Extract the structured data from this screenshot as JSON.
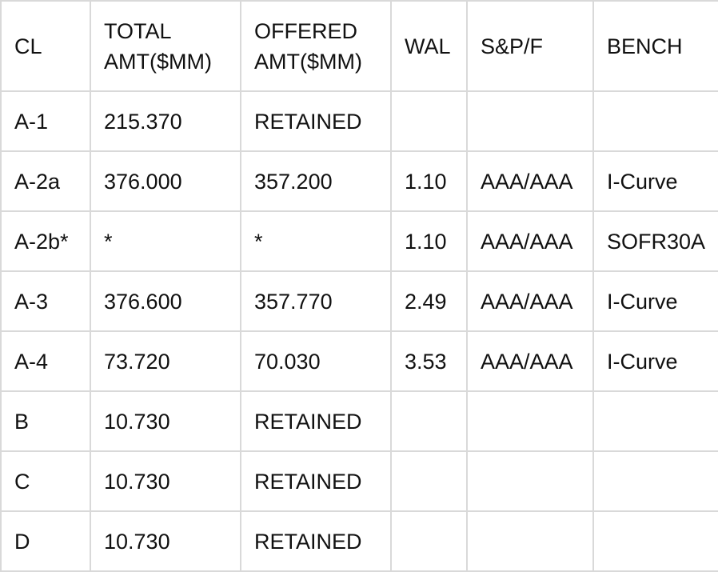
{
  "table": {
    "headers": [
      "CL",
      "TOTAL AMT($MM)",
      "OFFERED AMT($MM)",
      "WAL",
      "S&P/F",
      "BENCH"
    ],
    "header_lines": {
      "total_line1": "TOTAL",
      "total_line2": "AMT($MM)",
      "offered_line1": "OFFERED",
      "offered_line2": "AMT($MM)"
    },
    "rows": [
      [
        "A-1",
        "215.370",
        "RETAINED",
        "",
        "",
        ""
      ],
      [
        "A-2a",
        "376.000",
        "357.200",
        "1.10",
        "AAA/AAA",
        "I-Curve"
      ],
      [
        "A-2b*",
        "*",
        "*",
        "1.10",
        "AAA/AAA",
        "SOFR30A"
      ],
      [
        "A-3",
        "376.600",
        "357.770",
        "2.49",
        "AAA/AAA",
        "I-Curve"
      ],
      [
        "A-4",
        "73.720",
        "70.030",
        "3.53",
        "AAA/AAA",
        "I-Curve"
      ],
      [
        "B",
        "10.730",
        "RETAINED",
        "",
        "",
        ""
      ],
      [
        "C",
        "10.730",
        "RETAINED",
        "",
        "",
        ""
      ],
      [
        "D",
        "10.730",
        "RETAINED",
        "",
        "",
        ""
      ]
    ]
  },
  "colors": {
    "border": "#d9d9d9",
    "text": "#111111",
    "background": "#ffffff"
  }
}
